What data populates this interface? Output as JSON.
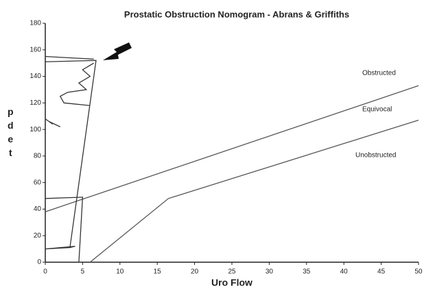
{
  "chart_data": {
    "type": "line",
    "title": "Prostatic Obstruction Nomogram - Abrans & Griffiths",
    "x_label": "Uro Flow",
    "y_label": "pdet",
    "xlim": [
      0,
      50
    ],
    "ylim": [
      0,
      180
    ],
    "xticks": [
      0,
      5,
      10,
      15,
      20,
      25,
      30,
      35,
      40,
      45,
      50
    ],
    "yticks": [
      0,
      20,
      40,
      60,
      80,
      100,
      120,
      140,
      160,
      180
    ],
    "annotations": [
      "Obstructed",
      "Equivocal",
      "Unobstructed"
    ],
    "series": [
      {
        "color": "#555555",
        "x": [
          0,
          50
        ],
        "values": [
          38,
          133
        ]
      },
      {
        "color": "#555555",
        "x": [
          6,
          16.5,
          50
        ],
        "values": [
          0,
          48,
          107
        ]
      },
      {
        "color": "#333333",
        "x": [
          0,
          3.3,
          6.8,
          0,
          null,
          0,
          6.5,
          null,
          6.5,
          5,
          6,
          4.5,
          5.5,
          3,
          2,
          2.5,
          6,
          null,
          0,
          5,
          4.5,
          null,
          0,
          1,
          0.5,
          2,
          null,
          0,
          4,
          3.3
        ],
        "values": [
          10,
          11,
          152,
          151,
          null,
          155,
          153,
          null,
          150,
          145,
          140,
          135,
          130,
          128,
          125,
          120,
          118,
          null,
          48,
          49,
          0,
          null,
          108,
          104,
          106,
          102,
          null,
          10,
          12,
          11
        ]
      }
    ]
  }
}
